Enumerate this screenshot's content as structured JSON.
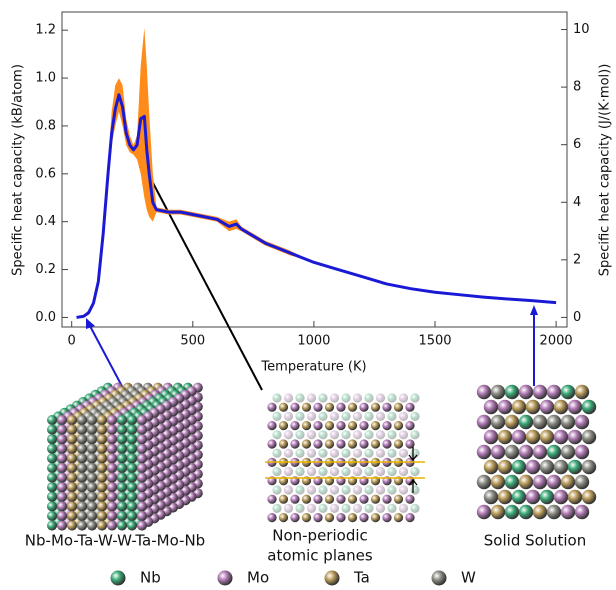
{
  "chart_data": {
    "type": "line",
    "x_label": "Temperature (K)",
    "y_label": "Specific heat capacity (kB/atom)",
    "y2_label": "Specific heat capacity (J/(K·mol))",
    "x": [
      20,
      50,
      70,
      90,
      110,
      130,
      150,
      165,
      180,
      195,
      210,
      225,
      240,
      255,
      270,
      285,
      300,
      310,
      320,
      335,
      350,
      400,
      450,
      500,
      550,
      600,
      650,
      680,
      700,
      750,
      800,
      850,
      900,
      950,
      1000,
      1100,
      1200,
      1300,
      1400,
      1500,
      1600,
      1700,
      1800,
      1900,
      2000
    ],
    "series": [
      {
        "color": "#1a1ad6",
        "values": [
          0.0,
          0.005,
          0.02,
          0.06,
          0.15,
          0.35,
          0.6,
          0.77,
          0.87,
          0.93,
          0.88,
          0.77,
          0.72,
          0.7,
          0.72,
          0.83,
          0.84,
          0.7,
          0.6,
          0.48,
          0.45,
          0.44,
          0.44,
          0.43,
          0.42,
          0.41,
          0.38,
          0.39,
          0.37,
          0.34,
          0.31,
          0.29,
          0.27,
          0.25,
          0.23,
          0.2,
          0.17,
          0.14,
          0.12,
          0.105,
          0.095,
          0.085,
          0.077,
          0.07,
          0.062
        ]
      }
    ],
    "band": {
      "color": "#ff8c1a",
      "lower": [
        0.0,
        0.0,
        0.01,
        0.05,
        0.14,
        0.33,
        0.57,
        0.72,
        0.8,
        0.86,
        0.8,
        0.72,
        0.69,
        0.68,
        0.66,
        0.6,
        0.5,
        0.45,
        0.42,
        0.4,
        0.44,
        0.43,
        0.43,
        0.42,
        0.41,
        0.4,
        0.36,
        0.37,
        0.36,
        0.33,
        0.3,
        0.28,
        0.26,
        0.245,
        0.225,
        0.195,
        0.165,
        0.137,
        0.117,
        0.102,
        0.092,
        0.082,
        0.075,
        0.068,
        0.06
      ],
      "upper": [
        0.005,
        0.01,
        0.03,
        0.07,
        0.16,
        0.37,
        0.63,
        0.86,
        0.97,
        1.0,
        0.97,
        0.83,
        0.76,
        0.72,
        0.76,
        1.05,
        1.21,
        1.05,
        0.85,
        0.6,
        0.46,
        0.45,
        0.45,
        0.44,
        0.43,
        0.42,
        0.4,
        0.41,
        0.38,
        0.35,
        0.32,
        0.3,
        0.28,
        0.255,
        0.235,
        0.205,
        0.175,
        0.143,
        0.123,
        0.108,
        0.098,
        0.088,
        0.079,
        0.072,
        0.064
      ]
    },
    "xlim": [
      -40,
      2045
    ],
    "xticks": [
      0,
      500,
      1000,
      1500,
      2000
    ],
    "ylim": [
      -0.04,
      1.276
    ],
    "yticks": [
      {
        "value": 0,
        "label": "0.0"
      },
      0.2,
      0.4,
      0.6,
      0.8,
      {
        "value": 1,
        "label": "1.0"
      },
      1.2
    ],
    "y2lim": [
      -0.333,
      10.609
    ],
    "y2ticks": [
      0,
      2,
      4,
      6,
      8,
      10
    ]
  },
  "panels": [
    {
      "caption": [
        "Nb-Mo-Ta-W-W-Ta-Mo-Nb"
      ]
    },
    {
      "caption": [
        "Non-periodic",
        "atomic planes"
      ]
    },
    {
      "caption": [
        "Solid Solution"
      ]
    }
  ],
  "elements": [
    {
      "name": "Nb",
      "color": "#3aa876"
    },
    {
      "name": "Mo",
      "color": "#b07ab4"
    },
    {
      "name": "Ta",
      "color": "#b89a58"
    },
    {
      "name": "W",
      "color": "#8c8c84"
    }
  ]
}
